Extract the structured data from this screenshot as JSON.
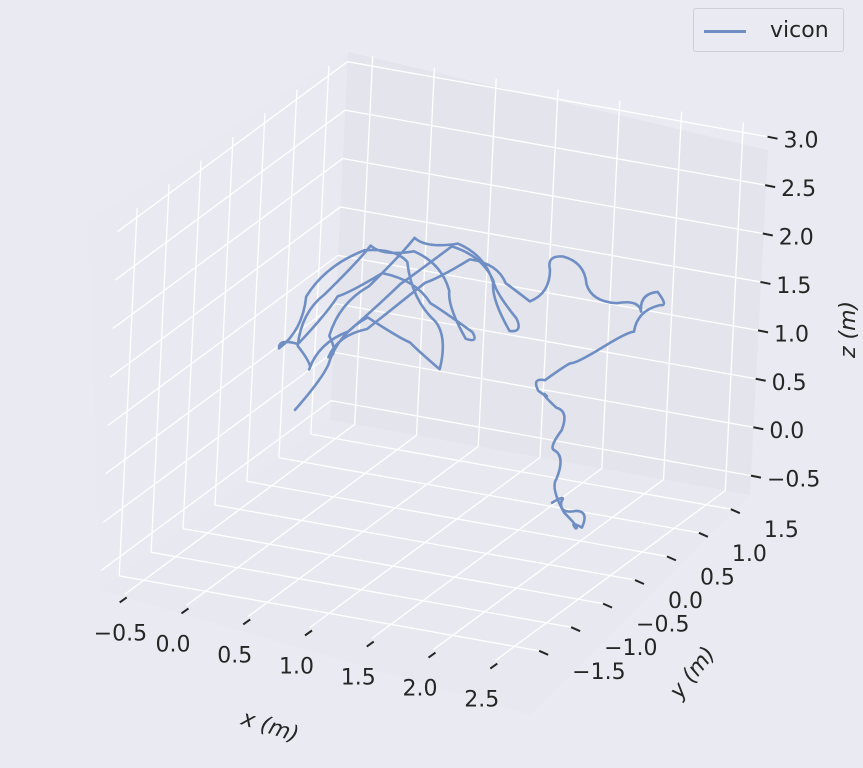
{
  "chart_data": {
    "type": "line",
    "projection": "3d",
    "series": [
      {
        "name": "vicon",
        "color": "#6f8fc4",
        "x": [
          0.3,
          0.45,
          0.7,
          0.95,
          1.05,
          0.85,
          0.55,
          0.25,
          -0.05,
          -0.1,
          0.15,
          0.4,
          0.65,
          0.9,
          1.1,
          0.95,
          0.75,
          0.5,
          0.25,
          0.05,
          0.0,
          0.2,
          0.45,
          0.7,
          0.95,
          1.2,
          1.35,
          1.25,
          1.05,
          0.8,
          0.55,
          0.35,
          0.2,
          0.3,
          0.55,
          0.85,
          1.1,
          1.3,
          1.45,
          1.55,
          1.6,
          1.75,
          1.95,
          2.1,
          2.2,
          2.25,
          2.15,
          2.0,
          1.85,
          1.75,
          1.8,
          1.95,
          2.15,
          2.3,
          2.35,
          2.45,
          2.55,
          2.6,
          2.55,
          2.45,
          2.35,
          2.3
        ],
        "y": [
          -0.8,
          -0.6,
          -0.5,
          -0.3,
          0.0,
          0.3,
          0.4,
          0.3,
          0.0,
          -0.3,
          -0.5,
          -0.4,
          -0.2,
          0.1,
          0.4,
          0.6,
          0.7,
          0.6,
          0.4,
          0.1,
          -0.2,
          -0.4,
          -0.3,
          0.0,
          0.3,
          0.5,
          0.6,
          0.7,
          0.8,
          0.7,
          0.5,
          0.2,
          -0.1,
          -0.3,
          -0.2,
          0.1,
          0.3,
          0.5,
          0.6,
          0.7,
          0.8,
          0.9,
          1.0,
          1.1,
          1.15,
          1.1,
          0.9,
          0.7,
          0.5,
          0.3,
          0.1,
          -0.1,
          -0.3,
          -0.5,
          -0.7,
          -0.85,
          -0.9,
          -0.8,
          -0.6,
          -0.5,
          -0.55,
          -0.6
        ],
        "z": [
          0.9,
          1.3,
          1.8,
          1.5,
          1.1,
          1.4,
          1.9,
          2.0,
          1.6,
          1.2,
          1.4,
          1.9,
          2.1,
          1.7,
          1.3,
          1.1,
          1.5,
          1.9,
          2.0,
          1.6,
          1.2,
          1.1,
          1.5,
          1.9,
          2.2,
          1.8,
          1.4,
          1.2,
          1.6,
          2.0,
          2.1,
          1.7,
          1.3,
          1.2,
          1.5,
          1.9,
          2.1,
          1.8,
          1.6,
          1.9,
          2.0,
          1.7,
          1.5,
          1.4,
          1.6,
          1.5,
          1.3,
          1.2,
          1.1,
          1.0,
          1.0,
          1.1,
          1.1,
          1.0,
          0.9,
          0.7,
          0.4,
          0.2,
          0.1,
          0.2,
          0.3,
          0.3
        ]
      }
    ],
    "xlabel": "x (m)",
    "ylabel": "y (m)",
    "zlabel": "z (m)",
    "xlim": [
      -0.7,
      2.7
    ],
    "ylim": [
      -1.8,
      1.8
    ],
    "zlim": [
      -0.7,
      3.1
    ],
    "xticks": [
      "−0.5",
      "0.0",
      "0.5",
      "1.0",
      "1.5",
      "2.0",
      "2.5"
    ],
    "yticks": [
      "−1.5",
      "−1.0",
      "−0.5",
      "0.0",
      "0.5",
      "1.0",
      "1.5"
    ],
    "zticks": [
      "−0.5",
      "0.0",
      "0.5",
      "1.0",
      "1.5",
      "2.0",
      "2.5",
      "3.0"
    ],
    "grid": true,
    "legend": "top-right"
  },
  "legend": {
    "label": "vicon"
  },
  "colors": {
    "background": "#eaeaf2",
    "pane": "#e6e6ee",
    "grid": "#ffffff",
    "line": "#6f8fc4"
  }
}
